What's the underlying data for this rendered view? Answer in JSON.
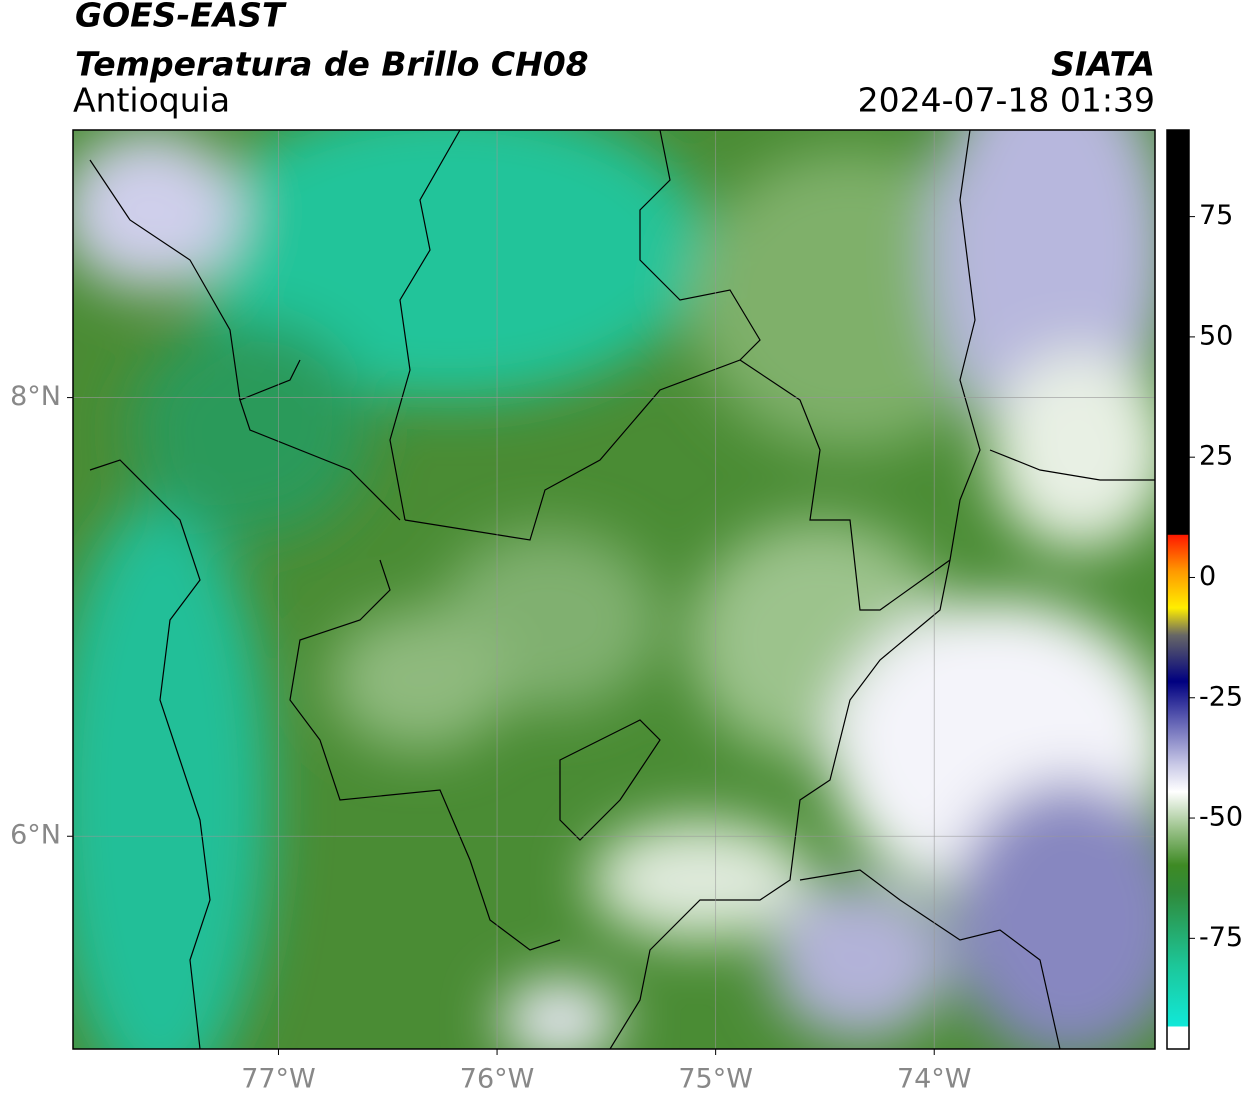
{
  "header": {
    "satellite": "GOES-EAST",
    "product": "Temperatura de Brillo CH08",
    "region": "Antioquia",
    "source": "SIATA",
    "datetime": "2024-07-18 01:39"
  },
  "map": {
    "xlim": [
      -77.94,
      -72.99
    ],
    "ylim": [
      5.03,
      9.22
    ],
    "xticks": [
      {
        "value": -77,
        "label": "77°W"
      },
      {
        "value": -76,
        "label": "76°W"
      },
      {
        "value": -75,
        "label": "75°W"
      },
      {
        "value": -74,
        "label": "74°W"
      }
    ],
    "yticks": [
      {
        "value": 8,
        "label": "8°N"
      },
      {
        "value": 6,
        "label": "6°N"
      }
    ],
    "grid": true
  },
  "colorbar": {
    "lim": [
      -98,
      93
    ],
    "ticks": [
      75,
      50,
      25,
      0,
      -25,
      -50,
      -75
    ]
  }
}
